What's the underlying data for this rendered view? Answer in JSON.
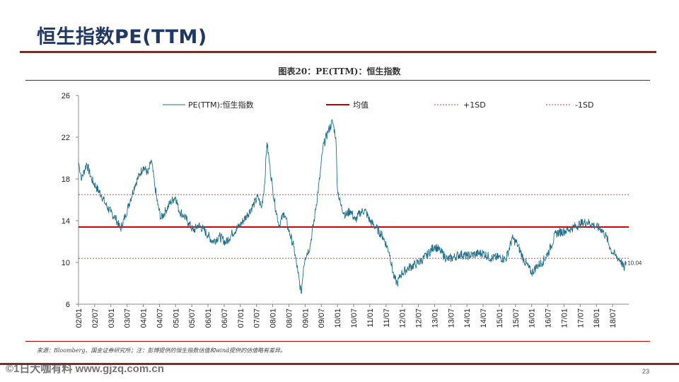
{
  "slide": {
    "title": "恒生指数PE(TTM)",
    "caption": "图表20：PE(TTM)：恒生指数",
    "source_note": "来源：Bloomberg、国金证券研究所；注：彭博提供的恒生指数估值和wind提供的估值略有差异。",
    "page_number": "23",
    "watermark": "©1日大咖有料 www.gjzq.com.cn"
  },
  "colors": {
    "series": "#1f6f8b",
    "mean": "#c00000",
    "band": "#c00000",
    "title": "#1f3864",
    "rule": "#7a2e2a"
  },
  "chart_data": {
    "type": "line",
    "title": "PE(TTM)：恒生指数",
    "xlabel": "",
    "ylabel": "",
    "ylim": [
      6,
      26
    ],
    "yticks": [
      6,
      10,
      14,
      18,
      22,
      26
    ],
    "x_tick_labels": [
      "02/01",
      "02/07",
      "03/01",
      "03/07",
      "04/01",
      "04/07",
      "05/01",
      "05/07",
      "06/01",
      "06/07",
      "07/01",
      "07/07",
      "08/01",
      "08/07",
      "09/01",
      "09/07",
      "10/01",
      "10/07",
      "11/01",
      "11/07",
      "12/01",
      "12/07",
      "13/01",
      "13/07",
      "14/01",
      "14/07",
      "15/01",
      "15/07",
      "16/01",
      "16/07",
      "17/01",
      "17/07",
      "18/01",
      "18/07"
    ],
    "legend": {
      "series": "PE(TTM):恒生指数",
      "mean": "均值",
      "plus_sd": "+1SD",
      "minus_sd": "-1SD"
    },
    "series": [
      {
        "name": "PE(TTM):恒生指数",
        "points": [
          [
            2002.0,
            19.6
          ],
          [
            2002.1,
            18.0
          ],
          [
            2002.25,
            19.5
          ],
          [
            2002.4,
            18.0
          ],
          [
            2002.55,
            17.2
          ],
          [
            2002.7,
            16.5
          ],
          [
            2002.85,
            15.5
          ],
          [
            2003.0,
            14.8
          ],
          [
            2003.15,
            14.2
          ],
          [
            2003.3,
            13.2
          ],
          [
            2003.45,
            14.5
          ],
          [
            2003.6,
            16.0
          ],
          [
            2003.75,
            17.5
          ],
          [
            2003.9,
            18.5
          ],
          [
            2004.0,
            19.2
          ],
          [
            2004.15,
            18.5
          ],
          [
            2004.25,
            19.8
          ],
          [
            2004.35,
            17.5
          ],
          [
            2004.45,
            15.5
          ],
          [
            2004.55,
            14.2
          ],
          [
            2004.7,
            15.0
          ],
          [
            2004.85,
            15.8
          ],
          [
            2005.0,
            16.3
          ],
          [
            2005.1,
            15.0
          ],
          [
            2005.25,
            14.5
          ],
          [
            2005.4,
            13.8
          ],
          [
            2005.55,
            13.0
          ],
          [
            2005.7,
            13.6
          ],
          [
            2005.85,
            13.2
          ],
          [
            2006.0,
            12.6
          ],
          [
            2006.15,
            12.0
          ],
          [
            2006.35,
            12.5
          ],
          [
            2006.55,
            11.9
          ],
          [
            2006.75,
            12.8
          ],
          [
            2007.0,
            13.6
          ],
          [
            2007.2,
            14.5
          ],
          [
            2007.4,
            15.5
          ],
          [
            2007.55,
            16.3
          ],
          [
            2007.65,
            15.2
          ],
          [
            2007.75,
            17.5
          ],
          [
            2007.82,
            21.5
          ],
          [
            2007.9,
            19.5
          ],
          [
            2008.0,
            17.0
          ],
          [
            2008.1,
            15.0
          ],
          [
            2008.2,
            13.5
          ],
          [
            2008.35,
            14.8
          ],
          [
            2008.5,
            13.0
          ],
          [
            2008.65,
            11.5
          ],
          [
            2008.78,
            9.0
          ],
          [
            2008.88,
            7.0
          ],
          [
            2008.95,
            9.5
          ],
          [
            2009.0,
            10.5
          ],
          [
            2009.15,
            11.5
          ],
          [
            2009.3,
            14.5
          ],
          [
            2009.45,
            18.0
          ],
          [
            2009.55,
            21.0
          ],
          [
            2009.7,
            22.5
          ],
          [
            2009.85,
            23.5
          ],
          [
            2009.95,
            22.0
          ],
          [
            2010.0,
            17.0
          ],
          [
            2010.1,
            15.5
          ],
          [
            2010.25,
            14.5
          ],
          [
            2010.4,
            15.0
          ],
          [
            2010.55,
            14.0
          ],
          [
            2010.7,
            14.8
          ],
          [
            2010.85,
            15.0
          ],
          [
            2011.0,
            14.0
          ],
          [
            2011.2,
            13.3
          ],
          [
            2011.4,
            12.5
          ],
          [
            2011.6,
            11.0
          ],
          [
            2011.75,
            8.5
          ],
          [
            2011.85,
            8.0
          ],
          [
            2011.95,
            8.8
          ],
          [
            2012.0,
            9.0
          ],
          [
            2012.2,
            9.5
          ],
          [
            2012.4,
            9.8
          ],
          [
            2012.6,
            10.2
          ],
          [
            2012.8,
            10.8
          ],
          [
            2013.0,
            11.6
          ],
          [
            2013.2,
            11.0
          ],
          [
            2013.4,
            10.3
          ],
          [
            2013.6,
            10.5
          ],
          [
            2013.8,
            10.8
          ],
          [
            2014.0,
            10.6
          ],
          [
            2014.25,
            10.8
          ],
          [
            2014.5,
            10.9
          ],
          [
            2014.75,
            10.4
          ],
          [
            2015.0,
            10.5
          ],
          [
            2015.2,
            10.3
          ],
          [
            2015.4,
            12.3
          ],
          [
            2015.55,
            11.8
          ],
          [
            2015.75,
            10.3
          ],
          [
            2016.0,
            9.0
          ],
          [
            2016.15,
            9.6
          ],
          [
            2016.35,
            10.1
          ],
          [
            2016.55,
            11.2
          ],
          [
            2016.75,
            12.8
          ],
          [
            2017.0,
            13.0
          ],
          [
            2017.25,
            13.3
          ],
          [
            2017.5,
            13.7
          ],
          [
            2017.7,
            13.9
          ],
          [
            2017.9,
            13.6
          ],
          [
            2018.0,
            13.4
          ],
          [
            2018.15,
            13.2
          ],
          [
            2018.3,
            12.5
          ],
          [
            2018.45,
            11.2
          ],
          [
            2018.6,
            10.6
          ],
          [
            2018.75,
            10.2
          ],
          [
            2018.85,
            9.4
          ],
          [
            2018.92,
            10.04
          ]
        ],
        "end_label": "10.04"
      }
    ],
    "mean": 13.4,
    "plus_1sd": 16.5,
    "minus_1sd": 10.4
  }
}
